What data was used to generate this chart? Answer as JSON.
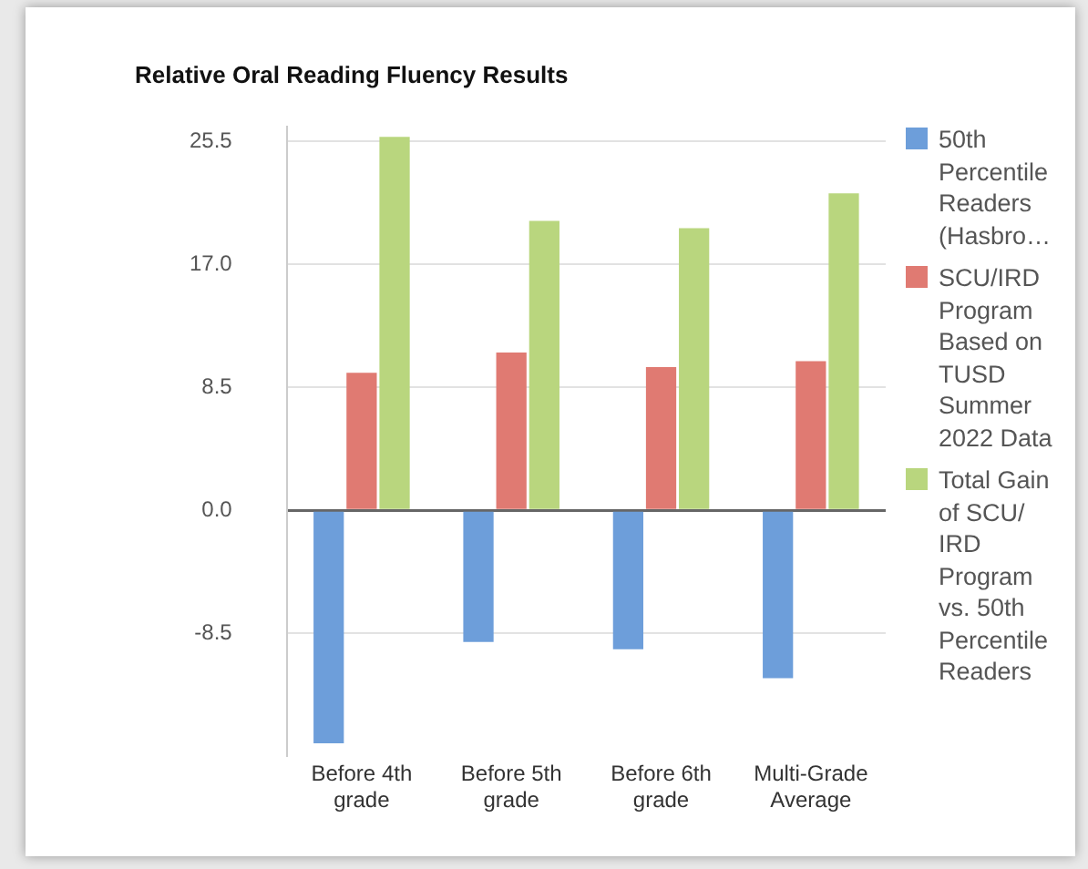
{
  "chart_data": {
    "type": "bar",
    "title": "Relative Oral Reading Fluency Results",
    "categories": [
      "Before 4th grade",
      "Before 5th grade",
      "Before 6th grade",
      "Multi-Grade Average"
    ],
    "series": [
      {
        "name": "50th Percentile Readers (Hasbro…",
        "color": "#6d9eda",
        "values": [
          -16.1,
          -9.1,
          -9.6,
          -11.6
        ]
      },
      {
        "name": "SCU/IRD Program Based on TUSD Summer 2022 Data",
        "color": "#e07a72",
        "values": [
          9.5,
          10.9,
          9.9,
          10.3
        ]
      },
      {
        "name": "Total Gain of SCU/ IRD Program vs. 50th Percentile Readers",
        "color": "#b9d67e",
        "values": [
          25.8,
          20.0,
          19.5,
          21.9
        ]
      }
    ],
    "ylim": [
      -17,
      26.5
    ],
    "yticks": [
      {
        "value": -8.5,
        "label": "-8.5"
      },
      {
        "value": 0,
        "label": "0.0"
      },
      {
        "value": 8.5,
        "label": "8.5"
      },
      {
        "value": 17,
        "label": "17.0"
      },
      {
        "value": 25.5,
        "label": "25.5"
      }
    ],
    "grid": "y",
    "legend": "right"
  }
}
